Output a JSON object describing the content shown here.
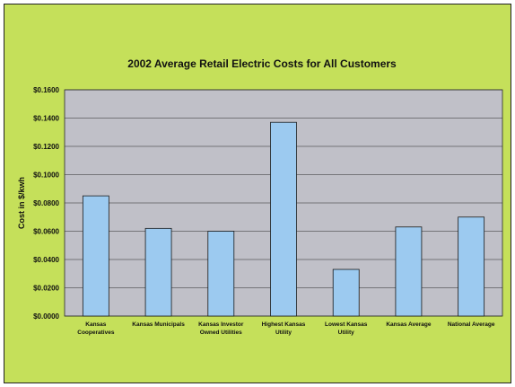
{
  "chart_data": {
    "type": "bar",
    "title": "2002 Average Retail Electric Costs for All Customers",
    "xlabel": "",
    "ylabel": "Cost in $/kwh",
    "ylim": [
      0,
      0.16
    ],
    "yticks": [
      0,
      0.02,
      0.04,
      0.06,
      0.08,
      0.1,
      0.12,
      0.14,
      0.16
    ],
    "ytick_labels": [
      "$0.0000",
      "$0.0200",
      "$0.0400",
      "$0.0600",
      "$0.0800",
      "$0.1000",
      "$0.1200",
      "$0.1400",
      "$0.1600"
    ],
    "categories": [
      [
        "Kansas",
        "Cooperatives"
      ],
      [
        "Kansas Municipals"
      ],
      [
        "Kansas Investor",
        "Owned Utilities"
      ],
      [
        "Highest Kansas",
        "Utility"
      ],
      [
        "Lowest Kansas",
        "Utility"
      ],
      [
        "Kansas Average"
      ],
      [
        "National Average"
      ]
    ],
    "values": [
      0.085,
      0.062,
      0.06,
      0.137,
      0.033,
      0.063,
      0.07
    ],
    "grid": true,
    "legend": "none",
    "colors": {
      "background": "#c5e05a",
      "plot_area": "#c0c0c8",
      "bar_fill": "#9ccaf0",
      "bar_stroke": "#1a1a1a",
      "gridline": "#2a2a2a"
    }
  }
}
